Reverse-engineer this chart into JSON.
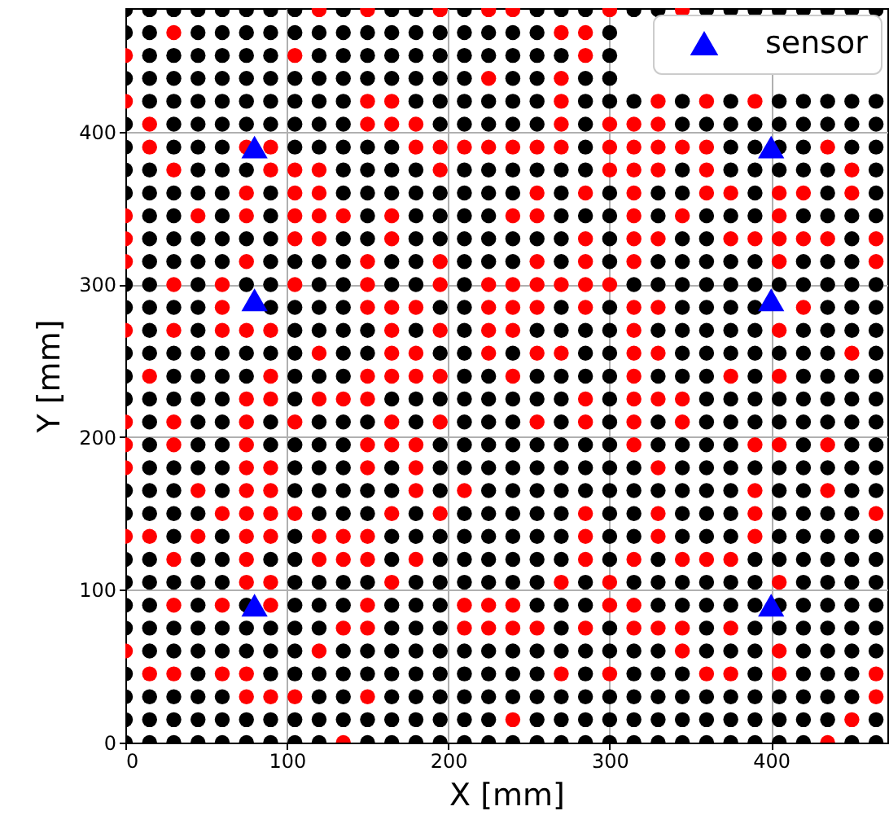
{
  "chart_data": {
    "type": "scatter",
    "xlabel": "X [mm]",
    "ylabel": "Y [mm]",
    "xlim": [
      0,
      472
    ],
    "ylim": [
      0,
      481
    ],
    "xticks": [
      0,
      100,
      200,
      300,
      400
    ],
    "yticks": [
      0,
      100,
      200,
      300,
      400
    ],
    "grid": true,
    "legend": "top right",
    "marker": "circle",
    "series": [
      {
        "color": "#000000",
        "x": [
          0,
          15,
          30,
          45,
          60,
          75,
          90,
          105,
          135,
          165,
          180,
          210,
          255,
          270,
          285,
          315,
          330,
          360,
          375,
          390,
          405,
          420,
          435,
          450,
          465
        ],
        "values": [
          480,
          480,
          480,
          480,
          480,
          480,
          480,
          480,
          480,
          480,
          480,
          480,
          480,
          480,
          480,
          480,
          480,
          480,
          480,
          480,
          480,
          480,
          480,
          480,
          480
        ]
      },
      {
        "color": "#ff0000",
        "x": [
          120,
          150,
          195,
          225,
          240,
          300,
          345
        ],
        "values": [
          480,
          480,
          480,
          480,
          480,
          480,
          480
        ]
      },
      {
        "color": "#000000",
        "x": [
          0,
          15,
          45,
          60,
          75,
          90,
          105,
          120,
          135,
          150,
          165,
          180,
          195,
          210,
          225,
          240,
          255,
          300
        ],
        "values": [
          465,
          465,
          465,
          465,
          465,
          465,
          465,
          465,
          465,
          465,
          465,
          465,
          465,
          465,
          465,
          465,
          465,
          465
        ]
      },
      {
        "color": "#ff0000",
        "x": [
          30,
          270,
          285
        ],
        "values": [
          465,
          465,
          465
        ]
      },
      {
        "color": "#000000",
        "x": [
          15,
          30,
          45,
          60,
          75,
          90,
          120,
          135,
          150,
          165,
          180,
          195,
          210,
          225,
          240,
          255,
          270,
          300
        ],
        "values": [
          450,
          450,
          450,
          450,
          450,
          450,
          450,
          450,
          450,
          450,
          450,
          450,
          450,
          450,
          450,
          450,
          450,
          450
        ]
      },
      {
        "color": "#ff0000",
        "x": [
          0,
          105,
          285
        ],
        "values": [
          450,
          450,
          450
        ]
      },
      {
        "color": "#000000",
        "x": [
          0,
          15,
          30,
          45,
          60,
          75,
          90,
          105,
          120,
          135,
          150,
          165,
          180,
          195,
          210,
          240,
          255,
          285,
          300
        ],
        "values": [
          435,
          435,
          435,
          435,
          435,
          435,
          435,
          435,
          435,
          435,
          435,
          435,
          435,
          435,
          435,
          435,
          435,
          435,
          435
        ]
      },
      {
        "color": "#ff0000",
        "x": [
          225,
          270
        ],
        "values": [
          435,
          435
        ]
      },
      {
        "color": "#000000",
        "x": [
          15,
          30,
          45,
          60,
          75,
          90,
          105,
          120,
          135,
          180,
          195,
          210,
          225,
          240,
          255,
          285,
          300,
          315,
          345,
          375,
          405,
          420,
          435,
          450,
          465
        ],
        "values": [
          420,
          420,
          420,
          420,
          420,
          420,
          420,
          420,
          420,
          420,
          420,
          420,
          420,
          420,
          420,
          420,
          420,
          420,
          420,
          420,
          420,
          420,
          420,
          420,
          420
        ]
      },
      {
        "color": "#ff0000",
        "x": [
          0,
          150,
          165,
          270,
          330,
          360,
          390
        ],
        "values": [
          420,
          420,
          420,
          420,
          420,
          420,
          420
        ]
      },
      {
        "color": "#000000",
        "x": [
          0,
          30,
          45,
          60,
          75,
          90,
          105,
          120,
          135,
          195,
          210,
          225,
          240,
          255,
          285,
          345,
          360,
          375,
          390,
          405,
          420,
          435,
          450,
          465
        ],
        "values": [
          405,
          405,
          405,
          405,
          405,
          405,
          405,
          405,
          405,
          405,
          405,
          405,
          405,
          405,
          405,
          405,
          405,
          405,
          405,
          405,
          405,
          405,
          405,
          405
        ]
      },
      {
        "color": "#ff0000",
        "x": [
          15,
          150,
          165,
          180,
          270,
          300,
          315,
          330
        ],
        "values": [
          405,
          405,
          405,
          405,
          405,
          405,
          405,
          405
        ]
      },
      {
        "color": "#000000",
        "x": [
          0,
          30,
          45,
          60,
          105,
          120,
          135,
          150,
          165,
          285,
          375,
          390,
          405,
          420,
          450,
          465
        ],
        "values": [
          390,
          390,
          390,
          390,
          390,
          390,
          390,
          390,
          390,
          390,
          390,
          390,
          390,
          390,
          390,
          390
        ]
      },
      {
        "color": "#ff0000",
        "x": [
          15,
          75,
          90,
          180,
          195,
          210,
          225,
          240,
          255,
          270,
          300,
          315,
          330,
          345,
          360,
          435
        ],
        "values": [
          390,
          390,
          390,
          390,
          390,
          390,
          390,
          390,
          390,
          390,
          390,
          390,
          390,
          390,
          390,
          390
        ]
      },
      {
        "color": "#000000",
        "x": [
          0,
          15,
          45,
          60,
          75,
          135,
          150,
          165,
          180,
          210,
          225,
          240,
          255,
          270,
          285,
          345,
          375,
          390,
          405,
          420,
          435,
          465
        ],
        "values": [
          375,
          375,
          375,
          375,
          375,
          375,
          375,
          375,
          375,
          375,
          375,
          375,
          375,
          375,
          375,
          375,
          375,
          375,
          375,
          375,
          375,
          375
        ]
      },
      {
        "color": "#ff0000",
        "x": [
          30,
          90,
          105,
          120,
          195,
          300,
          315,
          330,
          360,
          450
        ],
        "values": [
          375,
          375,
          375,
          375,
          375,
          375,
          375,
          375,
          375,
          375
        ]
      },
      {
        "color": "#000000",
        "x": [
          0,
          15,
          30,
          45,
          60,
          90,
          135,
          150,
          165,
          180,
          195,
          210,
          225,
          240,
          270,
          300,
          330,
          345,
          390,
          435,
          465
        ],
        "values": [
          360,
          360,
          360,
          360,
          360,
          360,
          360,
          360,
          360,
          360,
          360,
          360,
          360,
          360,
          360,
          360,
          360,
          360,
          360,
          360,
          360
        ]
      },
      {
        "color": "#ff0000",
        "x": [
          75,
          105,
          120,
          255,
          285,
          315,
          360,
          375,
          405,
          420,
          450
        ],
        "values": [
          360,
          360,
          360,
          360,
          360,
          360,
          360,
          360,
          360,
          360,
          360
        ]
      },
      {
        "color": "#000000",
        "x": [
          15,
          30,
          60,
          90,
          150,
          180,
          195,
          210,
          225,
          270,
          285,
          300,
          330,
          360,
          375,
          390,
          420,
          435,
          450,
          465
        ],
        "values": [
          345,
          345,
          345,
          345,
          345,
          345,
          345,
          345,
          345,
          345,
          345,
          345,
          345,
          345,
          345,
          345,
          345,
          345,
          345,
          345
        ]
      },
      {
        "color": "#ff0000",
        "x": [
          0,
          45,
          75,
          105,
          120,
          135,
          165,
          240,
          255,
          315,
          345,
          405
        ],
        "values": [
          345,
          345,
          345,
          345,
          345,
          345,
          345,
          345,
          345,
          345,
          345,
          345
        ]
      },
      {
        "color": "#000000",
        "x": [
          15,
          30,
          45,
          60,
          75,
          90,
          135,
          150,
          180,
          195,
          210,
          225,
          240,
          255,
          270,
          300,
          345,
          360,
          450
        ],
        "values": [
          330,
          330,
          330,
          330,
          330,
          330,
          330,
          330,
          330,
          330,
          330,
          330,
          330,
          330,
          330,
          330,
          330,
          330,
          330
        ]
      },
      {
        "color": "#ff0000",
        "x": [
          0,
          105,
          120,
          165,
          285,
          315,
          330,
          375,
          390,
          405,
          420,
          435,
          465
        ],
        "values": [
          330,
          330,
          330,
          330,
          330,
          330,
          330,
          330,
          330,
          330,
          330,
          330,
          330
        ]
      },
      {
        "color": "#000000",
        "x": [
          15,
          30,
          45,
          60,
          90,
          105,
          120,
          135,
          165,
          180,
          210,
          225,
          240,
          270,
          300,
          330,
          345,
          360,
          375,
          390,
          420,
          435,
          450
        ],
        "values": [
          315,
          315,
          315,
          315,
          315,
          315,
          315,
          315,
          315,
          315,
          315,
          315,
          315,
          315,
          315,
          315,
          315,
          315,
          315,
          315,
          315,
          315,
          315
        ]
      },
      {
        "color": "#ff0000",
        "x": [
          0,
          75,
          150,
          195,
          255,
          285,
          315,
          405,
          465
        ],
        "values": [
          315,
          315,
          315,
          315,
          315,
          315,
          315,
          315,
          315
        ]
      },
      {
        "color": "#000000",
        "x": [
          0,
          15,
          45,
          75,
          90,
          120,
          135,
          165,
          180,
          210,
          315,
          330,
          345,
          360,
          375,
          390,
          405,
          420,
          435,
          450,
          465
        ],
        "values": [
          300,
          300,
          300,
          300,
          300,
          300,
          300,
          300,
          300,
          300,
          300,
          300,
          300,
          300,
          300,
          300,
          300,
          300,
          300,
          300,
          300
        ]
      },
      {
        "color": "#ff0000",
        "x": [
          30,
          60,
          105,
          150,
          195,
          225,
          240,
          255,
          270,
          285,
          300
        ],
        "values": [
          300,
          300,
          300,
          300,
          300,
          300,
          300,
          300,
          300,
          300,
          300
        ]
      },
      {
        "color": "#000000",
        "x": [
          0,
          15,
          30,
          45,
          75,
          90,
          105,
          120,
          135,
          195,
          210,
          270,
          300,
          345,
          360,
          375,
          390,
          405,
          435,
          450,
          465
        ],
        "values": [
          285,
          285,
          285,
          285,
          null,
          285,
          285,
          285,
          285,
          285,
          285,
          285,
          285,
          285,
          285,
          285,
          285,
          null,
          285,
          285,
          285
        ]
      },
      {
        "color": "#ff0000",
        "x": [
          60,
          150,
          165,
          180,
          225,
          240,
          255,
          285,
          315,
          330,
          420
        ],
        "values": [
          285,
          285,
          285,
          285,
          285,
          285,
          285,
          285,
          285,
          285,
          285
        ]
      },
      {
        "color": "#000000",
        "x": [
          15,
          45,
          105,
          120,
          135,
          150,
          180,
          210,
          255,
          270,
          285,
          300,
          330,
          345,
          360,
          375,
          390,
          420,
          435,
          450,
          465
        ],
        "values": [
          270,
          270,
          270,
          270,
          270,
          270,
          270,
          270,
          270,
          270,
          270,
          270,
          270,
          270,
          270,
          270,
          270,
          270,
          270,
          270,
          270
        ]
      },
      {
        "color": "#ff0000",
        "x": [
          0,
          30,
          60,
          75,
          90,
          165,
          195,
          225,
          240,
          315,
          405
        ],
        "values": [
          270,
          270,
          270,
          270,
          270,
          270,
          270,
          270,
          270,
          270,
          270
        ]
      },
      {
        "color": "#000000",
        "x": [
          0,
          15,
          30,
          45,
          60,
          75,
          90,
          105,
          135,
          150,
          195,
          210,
          240,
          285,
          300,
          345,
          360,
          375,
          390,
          405,
          420,
          435,
          465
        ],
        "values": [
          255,
          255,
          255,
          255,
          255,
          255,
          255,
          255,
          255,
          255,
          255,
          255,
          255,
          255,
          255,
          255,
          255,
          255,
          255,
          255,
          255,
          255,
          255
        ]
      },
      {
        "color": "#ff0000",
        "x": [
          120,
          165,
          180,
          225,
          255,
          270,
          315,
          330,
          450
        ],
        "values": [
          255,
          255,
          255,
          255,
          255,
          255,
          255,
          255,
          255
        ]
      },
      {
        "color": "#000000",
        "x": [
          0,
          30,
          45,
          60,
          75,
          105,
          120,
          135,
          210,
          225,
          255,
          270,
          285,
          300,
          330,
          345,
          360,
          390,
          420,
          435,
          450,
          465
        ],
        "values": [
          240,
          240,
          240,
          240,
          240,
          240,
          240,
          240,
          240,
          240,
          240,
          240,
          240,
          240,
          240,
          240,
          240,
          240,
          240,
          240,
          240,
          240
        ]
      },
      {
        "color": "#ff0000",
        "x": [
          15,
          90,
          150,
          165,
          180,
          195,
          240,
          315,
          375,
          405
        ],
        "values": [
          240,
          240,
          240,
          240,
          240,
          240,
          240,
          240,
          240,
          240
        ]
      },
      {
        "color": "#000000",
        "x": [
          0,
          15,
          30,
          45,
          60,
          105,
          165,
          180,
          195,
          210,
          225,
          240,
          255,
          270,
          300,
          360,
          375,
          390,
          405,
          420,
          435,
          450,
          465
        ],
        "values": [
          225,
          225,
          225,
          225,
          225,
          225,
          225,
          225,
          225,
          225,
          225,
          225,
          225,
          225,
          225,
          225,
          225,
          225,
          225,
          225,
          225,
          225,
          225
        ]
      },
      {
        "color": "#ff0000",
        "x": [
          75,
          90,
          120,
          135,
          150,
          285,
          315,
          330,
          345
        ],
        "values": [
          225,
          225,
          225,
          225,
          225,
          225,
          225,
          225,
          225
        ]
      },
      {
        "color": "#000000",
        "x": [
          15,
          45,
          60,
          90,
          120,
          135,
          150,
          180,
          210,
          225,
          240,
          270,
          300,
          330,
          360,
          375,
          390,
          405,
          420,
          435,
          450,
          465
        ],
        "values": [
          210,
          210,
          210,
          210,
          210,
          210,
          210,
          210,
          210,
          210,
          210,
          210,
          210,
          210,
          210,
          210,
          210,
          210,
          210,
          210,
          210,
          210
        ]
      },
      {
        "color": "#ff0000",
        "x": [
          0,
          30,
          75,
          105,
          165,
          195,
          255,
          285,
          315,
          345
        ],
        "values": [
          210,
          210,
          210,
          210,
          210,
          210,
          210,
          210,
          210,
          210
        ]
      },
      {
        "color": "#000000",
        "x": [
          15,
          45,
          60,
          90,
          105,
          120,
          135,
          195,
          210,
          225,
          240,
          255,
          270,
          285,
          300,
          330,
          345,
          360,
          375,
          420,
          450,
          465
        ],
        "values": [
          195,
          195,
          195,
          195,
          195,
          195,
          195,
          195,
          195,
          195,
          195,
          195,
          195,
          195,
          195,
          195,
          195,
          195,
          195,
          195,
          195,
          195
        ]
      },
      {
        "color": "#ff0000",
        "x": [
          0,
          30,
          75,
          150,
          165,
          180,
          315,
          390,
          405,
          435
        ],
        "values": [
          195,
          195,
          195,
          195,
          195,
          195,
          195,
          195,
          195,
          195
        ]
      },
      {
        "color": "#000000",
        "x": [
          15,
          30,
          45,
          60,
          105,
          120,
          135,
          165,
          195,
          210,
          225,
          240,
          255,
          270,
          285,
          300,
          315,
          345,
          360,
          375,
          390,
          405,
          420,
          435,
          450,
          465
        ],
        "values": [
          180,
          180,
          180,
          180,
          180,
          180,
          180,
          180,
          180,
          180,
          180,
          180,
          180,
          180,
          180,
          180,
          180,
          180,
          180,
          180,
          180,
          180,
          180,
          180,
          180,
          180
        ]
      },
      {
        "color": "#ff0000",
        "x": [
          0,
          75,
          90,
          150,
          180,
          330
        ],
        "values": [
          180,
          180,
          180,
          180,
          180,
          180
        ]
      },
      {
        "color": "#000000",
        "x": [
          0,
          15,
          30,
          60,
          105,
          120,
          135,
          150,
          165,
          195,
          225,
          240,
          255,
          270,
          285,
          300,
          315,
          330,
          345,
          360,
          375,
          405,
          420,
          450,
          465
        ],
        "values": [
          165,
          165,
          165,
          165,
          165,
          165,
          165,
          165,
          165,
          165,
          165,
          165,
          165,
          165,
          165,
          165,
          165,
          165,
          165,
          165,
          165,
          165,
          165,
          165,
          165
        ]
      },
      {
        "color": "#ff0000",
        "x": [
          45,
          75,
          90,
          180,
          210,
          390,
          435
        ],
        "values": [
          165,
          165,
          165,
          165,
          165,
          165,
          165
        ]
      },
      {
        "color": "#000000",
        "x": [
          0,
          15,
          30,
          45,
          120,
          135,
          150,
          180,
          210,
          225,
          240,
          255,
          270,
          300,
          315,
          345,
          360,
          375,
          405,
          420,
          435,
          450
        ],
        "values": [
          150,
          150,
          150,
          150,
          150,
          150,
          150,
          150,
          150,
          150,
          150,
          150,
          150,
          150,
          150,
          150,
          150,
          150,
          150,
          150,
          150,
          150
        ]
      },
      {
        "color": "#ff0000",
        "x": [
          60,
          75,
          90,
          105,
          165,
          195,
          285,
          330,
          390,
          465
        ],
        "values": [
          150,
          150,
          150,
          150,
          150,
          150,
          150,
          150,
          150,
          150
        ]
      },
      {
        "color": "#000000",
        "x": [
          30,
          60,
          105,
          165,
          180,
          195,
          210,
          225,
          240,
          255,
          270,
          300,
          315,
          345,
          360,
          375,
          405,
          420,
          435,
          450,
          465
        ],
        "values": [
          135,
          135,
          135,
          135,
          135,
          135,
          135,
          135,
          135,
          135,
          135,
          135,
          135,
          135,
          135,
          135,
          135,
          135,
          135,
          135,
          135
        ]
      },
      {
        "color": "#ff0000",
        "x": [
          0,
          15,
          45,
          75,
          90,
          120,
          135,
          150,
          285,
          330,
          390
        ],
        "values": [
          135,
          135,
          135,
          135,
          135,
          135,
          135,
          135,
          135,
          135,
          135
        ]
      },
      {
        "color": "#000000",
        "x": [
          0,
          15,
          45,
          60,
          90,
          105,
          165,
          195,
          210,
          225,
          240,
          255,
          270,
          300,
          330,
          390,
          405,
          420,
          435,
          450,
          465
        ],
        "values": [
          120,
          120,
          120,
          120,
          120,
          120,
          120,
          120,
          120,
          120,
          120,
          120,
          120,
          120,
          120,
          120,
          120,
          120,
          120,
          120,
          120
        ]
      },
      {
        "color": "#ff0000",
        "x": [
          30,
          75,
          120,
          135,
          150,
          180,
          285,
          315,
          345,
          360,
          375
        ],
        "values": [
          120,
          120,
          120,
          120,
          120,
          120,
          120,
          120,
          120,
          120,
          120
        ]
      },
      {
        "color": "#000000",
        "x": [
          0,
          15,
          30,
          45,
          60,
          105,
          120,
          135,
          150,
          180,
          195,
          210,
          225,
          240,
          255,
          285,
          315,
          330,
          345,
          360,
          375,
          390,
          420,
          435,
          450,
          465
        ],
        "values": [
          105,
          105,
          105,
          105,
          105,
          105,
          105,
          105,
          105,
          105,
          105,
          105,
          105,
          105,
          105,
          105,
          105,
          105,
          105,
          105,
          105,
          105,
          105,
          105,
          105,
          105
        ]
      },
      {
        "color": "#ff0000",
        "x": [
          75,
          90,
          165,
          270,
          300,
          405
        ],
        "values": [
          105,
          105,
          105,
          105,
          105,
          105
        ]
      },
      {
        "color": "#000000",
        "x": [
          0,
          15,
          45,
          75,
          105,
          120,
          135,
          165,
          180,
          195,
          255,
          270,
          285,
          330,
          345,
          360,
          375,
          390,
          405,
          420,
          435,
          450,
          465
        ],
        "values": [
          90,
          90,
          90,
          90,
          90,
          90,
          90,
          90,
          90,
          90,
          90,
          90,
          90,
          90,
          90,
          90,
          90,
          90,
          90,
          90,
          90,
          90,
          90
        ]
      },
      {
        "color": "#ff0000",
        "x": [
          30,
          60,
          90,
          150,
          210,
          225,
          240,
          300,
          315
        ],
        "values": [
          90,
          90,
          90,
          90,
          90,
          90,
          90,
          90,
          90
        ]
      },
      {
        "color": "#000000",
        "x": [
          0,
          15,
          30,
          45,
          60,
          75,
          90,
          105,
          120,
          165,
          180,
          195,
          270,
          300,
          360,
          390,
          405,
          420,
          435,
          450,
          465
        ],
        "values": [
          75,
          75,
          75,
          75,
          75,
          75,
          75,
          75,
          75,
          75,
          75,
          75,
          75,
          75,
          75,
          75,
          75,
          75,
          75,
          75,
          75
        ]
      },
      {
        "color": "#ff0000",
        "x": [
          135,
          150,
          210,
          225,
          240,
          255,
          285,
          315,
          330,
          345,
          375
        ],
        "values": [
          75,
          75,
          75,
          75,
          75,
          75,
          75,
          75,
          75,
          75,
          75
        ]
      },
      {
        "color": "#000000",
        "x": [
          15,
          30,
          45,
          60,
          75,
          90,
          105,
          135,
          150,
          165,
          180,
          195,
          210,
          225,
          240,
          255,
          270,
          285,
          300,
          315,
          330,
          360,
          375,
          390,
          420,
          435,
          450,
          465
        ],
        "values": [
          60,
          60,
          60,
          60,
          60,
          60,
          60,
          60,
          60,
          60,
          60,
          60,
          60,
          60,
          60,
          60,
          60,
          60,
          60,
          60,
          60,
          60,
          60,
          60,
          60,
          60,
          60,
          60
        ]
      },
      {
        "color": "#ff0000",
        "x": [
          0,
          120,
          345,
          405
        ],
        "values": [
          60,
          60,
          60,
          60
        ]
      },
      {
        "color": "#000000",
        "x": [
          0,
          45,
          90,
          105,
          120,
          135,
          150,
          165,
          180,
          195,
          210,
          225,
          240,
          255,
          285,
          315,
          330,
          345,
          390,
          420,
          435,
          450
        ],
        "values": [
          45,
          45,
          45,
          45,
          45,
          45,
          45,
          45,
          45,
          45,
          45,
          45,
          45,
          45,
          45,
          45,
          45,
          45,
          45,
          45,
          45,
          45
        ]
      },
      {
        "color": "#ff0000",
        "x": [
          15,
          30,
          60,
          75,
          270,
          300,
          360,
          375,
          405,
          465
        ],
        "values": [
          45,
          45,
          45,
          45,
          45,
          45,
          45,
          45,
          45,
          45
        ]
      },
      {
        "color": "#000000",
        "x": [
          0,
          15,
          30,
          45,
          60,
          120,
          135,
          165,
          180,
          195,
          210,
          225,
          240,
          255,
          270,
          285,
          300,
          315,
          330,
          345,
          360,
          375,
          390,
          405,
          420,
          435,
          450
        ],
        "values": [
          30,
          30,
          30,
          30,
          30,
          30,
          30,
          30,
          30,
          30,
          30,
          30,
          30,
          30,
          30,
          30,
          30,
          30,
          30,
          30,
          30,
          30,
          30,
          30,
          30,
          30,
          30
        ]
      },
      {
        "color": "#ff0000",
        "x": [
          75,
          90,
          105,
          150,
          465
        ],
        "values": [
          30,
          30,
          30,
          30,
          30
        ]
      },
      {
        "color": "#000000",
        "x": [
          0,
          15,
          30,
          45,
          60,
          75,
          90,
          105,
          120,
          135,
          150,
          165,
          180,
          195,
          210,
          225,
          255,
          270,
          285,
          300,
          315,
          330,
          345,
          360,
          375,
          390,
          405,
          420,
          435,
          465
        ],
        "values": [
          15,
          15,
          15,
          15,
          15,
          15,
          15,
          15,
          15,
          15,
          15,
          15,
          15,
          15,
          15,
          15,
          15,
          15,
          15,
          15,
          15,
          15,
          15,
          15,
          15,
          15,
          15,
          15,
          15,
          15
        ]
      },
      {
        "color": "#ff0000",
        "x": [
          240,
          450
        ],
        "values": [
          15,
          15
        ]
      },
      {
        "color": "#000000",
        "x": [
          0,
          15,
          30,
          45,
          60,
          75,
          90,
          105,
          120,
          150,
          165,
          180,
          195,
          210,
          225,
          240,
          255,
          270,
          285,
          300,
          315,
          330,
          345,
          360,
          375,
          390,
          405,
          420,
          450,
          465
        ],
        "values": [
          0,
          0,
          0,
          0,
          0,
          0,
          0,
          0,
          0,
          0,
          0,
          0,
          0,
          0,
          0,
          0,
          0,
          0,
          0,
          0,
          0,
          0,
          0,
          0,
          0,
          0,
          0,
          0,
          0,
          0
        ]
      },
      {
        "color": "#ff0000",
        "x": [
          135,
          435
        ],
        "values": [
          0,
          0
        ]
      },
      {
        "name": "sensor",
        "color": "#0000ff",
        "marker": "triangle",
        "x": [
          80,
          80,
          80,
          400,
          400,
          400
        ],
        "values": [
          90,
          290,
          390,
          90,
          290,
          390
        ]
      }
    ]
  }
}
